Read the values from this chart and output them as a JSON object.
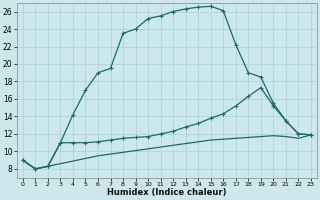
{
  "title": "",
  "xlabel": "Humidex (Indice chaleur)",
  "bg_color": "#cce8ea",
  "grid_color": "#b0d4d8",
  "line_color": "#1a6b6b",
  "xlim": [
    -0.5,
    23.5
  ],
  "ylim": [
    7,
    27
  ],
  "xticks": [
    0,
    1,
    2,
    3,
    4,
    5,
    6,
    7,
    8,
    9,
    10,
    11,
    12,
    13,
    14,
    15,
    16,
    17,
    18,
    19,
    20,
    21,
    22,
    23
  ],
  "yticks": [
    8,
    10,
    12,
    14,
    16,
    18,
    20,
    22,
    24,
    26
  ],
  "curve1_x": [
    0,
    1,
    2,
    3,
    4,
    5,
    6,
    7,
    8,
    9,
    10,
    11,
    12,
    13,
    14,
    15,
    16,
    17,
    18,
    19,
    20,
    21,
    22,
    23
  ],
  "curve1_y": [
    9.0,
    8.0,
    8.3,
    11.0,
    14.2,
    17.0,
    19.0,
    19.5,
    23.5,
    24.0,
    25.2,
    25.5,
    26.0,
    26.3,
    26.5,
    26.6,
    26.1,
    22.2,
    19.0,
    18.5,
    15.5,
    13.5,
    12.0,
    11.9
  ],
  "curve2_x": [
    0,
    1,
    2,
    3,
    4,
    5,
    6,
    7,
    8,
    9,
    10,
    11,
    12,
    13,
    14,
    15,
    16,
    17,
    18,
    19,
    20,
    21,
    22,
    23
  ],
  "curve2_y": [
    9.0,
    8.0,
    8.3,
    11.0,
    11.0,
    11.0,
    11.1,
    11.3,
    11.5,
    11.6,
    11.7,
    12.0,
    12.3,
    12.8,
    13.2,
    13.8,
    14.3,
    15.2,
    16.3,
    17.3,
    15.2,
    13.5,
    12.0,
    11.9
  ],
  "curve3_x": [
    0,
    1,
    2,
    3,
    4,
    5,
    6,
    7,
    8,
    9,
    10,
    11,
    12,
    13,
    14,
    15,
    16,
    17,
    18,
    19,
    20,
    21,
    22,
    23
  ],
  "curve3_y": [
    9.0,
    8.0,
    8.3,
    8.6,
    8.9,
    9.2,
    9.5,
    9.7,
    9.9,
    10.1,
    10.3,
    10.5,
    10.7,
    10.9,
    11.1,
    11.3,
    11.4,
    11.5,
    11.6,
    11.7,
    11.8,
    11.7,
    11.5,
    11.9
  ]
}
